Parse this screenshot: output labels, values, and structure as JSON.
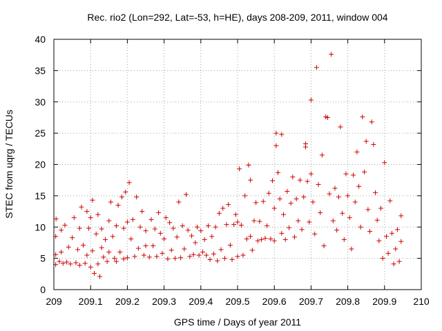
{
  "chart_data": {
    "type": "scatter",
    "title": "Rec. rio2 (Lon=292, Lat=-53, h=HE), days 208-209, 2011, window 004",
    "xlabel": "GPS time / Days of year 2011",
    "ylabel": "STEC from uqrg / TECUs",
    "xlim": [
      209,
      210
    ],
    "ylim": [
      0,
      40
    ],
    "xticks": [
      "209",
      "209.1",
      "209.2",
      "209.3",
      "209.4",
      "209.5",
      "209.6",
      "209.7",
      "209.8",
      "209.9",
      "210"
    ],
    "yticks": [
      "0",
      "5",
      "10",
      "15",
      "20",
      "25",
      "30",
      "35",
      "40"
    ],
    "grid": true,
    "marker": "+",
    "color": "#cc0000",
    "series": [
      {
        "name": "STEC",
        "points": [
          [
            209.005,
            4.0
          ],
          [
            209.005,
            5.6
          ],
          [
            209.005,
            8.5
          ],
          [
            209.006,
            11.3
          ],
          [
            209.015,
            4.5
          ],
          [
            209.02,
            9.5
          ],
          [
            209.02,
            6.0
          ],
          [
            209.025,
            4.2
          ],
          [
            209.03,
            10.3
          ],
          [
            209.035,
            4.4
          ],
          [
            209.04,
            6.8
          ],
          [
            209.045,
            4.1
          ],
          [
            209.05,
            8.3
          ],
          [
            209.055,
            11.5
          ],
          [
            209.06,
            4.3
          ],
          [
            209.065,
            6.4
          ],
          [
            209.07,
            9.8
          ],
          [
            209.07,
            3.9
          ],
          [
            209.075,
            13.2
          ],
          [
            209.08,
            7.1
          ],
          [
            209.085,
            4.2
          ],
          [
            209.09,
            12.5
          ],
          [
            209.09,
            5.5
          ],
          [
            209.095,
            9.8
          ],
          [
            209.1,
            3.6
          ],
          [
            209.1,
            11.5
          ],
          [
            209.105,
            14.3
          ],
          [
            209.105,
            6.2
          ],
          [
            209.11,
            2.6
          ],
          [
            209.115,
            8.9
          ],
          [
            209.12,
            4.1
          ],
          [
            209.12,
            12.0
          ],
          [
            209.125,
            2.1
          ],
          [
            209.13,
            6.7
          ],
          [
            209.13,
            9.7
          ],
          [
            209.135,
            5.2
          ],
          [
            209.14,
            8.0
          ],
          [
            209.145,
            4.5
          ],
          [
            209.15,
            11.0
          ],
          [
            209.15,
            6.0
          ],
          [
            209.155,
            14.0
          ],
          [
            209.16,
            8.5
          ],
          [
            209.165,
            5.0
          ],
          [
            209.17,
            10.2
          ],
          [
            209.17,
            4.5
          ],
          [
            209.175,
            13.5
          ],
          [
            209.18,
            6.0
          ],
          [
            209.185,
            14.8
          ],
          [
            209.19,
            9.8
          ],
          [
            209.19,
            4.9
          ],
          [
            209.195,
            15.6
          ],
          [
            209.2,
            10.8
          ],
          [
            209.2,
            5.1
          ],
          [
            209.205,
            17.1
          ],
          [
            209.21,
            8.1
          ],
          [
            209.215,
            11.2
          ],
          [
            209.22,
            5.3
          ],
          [
            209.225,
            14.8
          ],
          [
            209.23,
            6.6
          ],
          [
            209.235,
            10.0
          ],
          [
            209.24,
            12.5
          ],
          [
            209.245,
            5.5
          ],
          [
            209.25,
            7.0
          ],
          [
            209.25,
            9.4
          ],
          [
            209.26,
            5.2
          ],
          [
            209.265,
            11.2
          ],
          [
            209.27,
            7.0
          ],
          [
            209.275,
            9.7
          ],
          [
            209.28,
            5.3
          ],
          [
            209.285,
            12.3
          ],
          [
            209.29,
            9.0
          ],
          [
            209.295,
            5.8
          ],
          [
            209.3,
            8.1
          ],
          [
            209.305,
            11.5
          ],
          [
            209.31,
            4.9
          ],
          [
            209.315,
            10.7
          ],
          [
            209.32,
            6.3
          ],
          [
            209.325,
            9.8
          ],
          [
            209.33,
            5.0
          ],
          [
            209.335,
            8.4
          ],
          [
            209.34,
            14.0
          ],
          [
            209.345,
            5.1
          ],
          [
            209.35,
            10.2
          ],
          [
            209.355,
            6.5
          ],
          [
            209.36,
            15.2
          ],
          [
            209.365,
            9.5
          ],
          [
            209.37,
            5.3
          ],
          [
            209.375,
            8.6
          ],
          [
            209.38,
            5.6
          ],
          [
            209.385,
            7.5
          ],
          [
            209.39,
            10.0
          ],
          [
            209.395,
            5.5
          ],
          [
            209.4,
            9.4
          ],
          [
            209.405,
            6.0
          ],
          [
            209.41,
            8.0
          ],
          [
            209.415,
            5.5
          ],
          [
            209.42,
            10.2
          ],
          [
            209.425,
            4.8
          ],
          [
            209.43,
            8.5
          ],
          [
            209.435,
            5.7
          ],
          [
            209.44,
            10.0
          ],
          [
            209.445,
            4.6
          ],
          [
            209.45,
            12.2
          ],
          [
            209.455,
            6.4
          ],
          [
            209.46,
            13.0
          ],
          [
            209.465,
            5.0
          ],
          [
            209.47,
            10.4
          ],
          [
            209.475,
            13.6
          ],
          [
            209.48,
            7.1
          ],
          [
            209.485,
            4.8
          ],
          [
            209.49,
            10.4
          ],
          [
            209.495,
            12.0
          ],
          [
            209.5,
            10.8
          ],
          [
            209.5,
            5.3
          ],
          [
            209.505,
            19.3
          ],
          [
            209.51,
            10.3
          ],
          [
            209.515,
            5.5
          ],
          [
            209.52,
            15.0
          ],
          [
            209.525,
            8.1
          ],
          [
            209.53,
            19.9
          ],
          [
            209.535,
            17.5
          ],
          [
            209.535,
            8.5
          ],
          [
            209.54,
            6.3
          ],
          [
            209.545,
            11.0
          ],
          [
            209.55,
            13.9
          ],
          [
            209.555,
            7.8
          ],
          [
            209.56,
            10.9
          ],
          [
            209.565,
            8.0
          ],
          [
            209.57,
            14.1
          ],
          [
            209.575,
            8.2
          ],
          [
            209.58,
            10.2
          ],
          [
            209.585,
            15.4
          ],
          [
            209.59,
            8.1
          ],
          [
            209.595,
            17.4
          ],
          [
            209.6,
            13.0
          ],
          [
            209.6,
            7.8
          ],
          [
            209.605,
            25.0
          ],
          [
            209.605,
            23.0
          ],
          [
            209.61,
            18.7
          ],
          [
            209.615,
            14.5
          ],
          [
            209.62,
            24.8
          ],
          [
            209.62,
            9.0
          ],
          [
            209.625,
            12.0
          ],
          [
            209.63,
            8.0
          ],
          [
            209.635,
            15.7
          ],
          [
            209.64,
            9.9
          ],
          [
            209.645,
            13.8
          ],
          [
            209.65,
            18.0
          ],
          [
            209.655,
            8.4
          ],
          [
            209.66,
            14.5
          ],
          [
            209.665,
            11.0
          ],
          [
            209.67,
            17.5
          ],
          [
            209.675,
            9.6
          ],
          [
            209.68,
            14.8
          ],
          [
            209.685,
            23.3
          ],
          [
            209.685,
            22.8
          ],
          [
            209.69,
            17.3
          ],
          [
            209.695,
            10.8
          ],
          [
            209.7,
            18.5
          ],
          [
            209.705,
            14.0
          ],
          [
            209.71,
            8.9
          ],
          [
            209.715,
            35.5
          ],
          [
            209.7,
            30.3
          ],
          [
            209.72,
            16.8
          ],
          [
            209.725,
            12.3
          ],
          [
            209.73,
            21.5
          ],
          [
            209.735,
            7.0
          ],
          [
            209.74,
            27.6
          ],
          [
            209.745,
            27.5
          ],
          [
            209.75,
            15.3
          ],
          [
            209.755,
            37.6
          ],
          [
            209.76,
            11.0
          ],
          [
            209.765,
            16.2
          ],
          [
            209.77,
            9.5
          ],
          [
            209.775,
            14.8
          ],
          [
            209.78,
            26.0
          ],
          [
            209.785,
            12.2
          ],
          [
            209.79,
            8.0
          ],
          [
            209.795,
            18.5
          ],
          [
            209.8,
            15.0
          ],
          [
            209.805,
            11.5
          ],
          [
            209.81,
            6.5
          ],
          [
            209.815,
            18.3
          ],
          [
            209.82,
            14.0
          ],
          [
            209.825,
            22.0
          ],
          [
            209.83,
            16.5
          ],
          [
            209.835,
            10.0
          ],
          [
            209.84,
            27.6
          ],
          [
            209.845,
            18.8
          ],
          [
            209.85,
            23.7
          ],
          [
            209.855,
            12.8
          ],
          [
            209.86,
            9.3
          ],
          [
            209.865,
            26.8
          ],
          [
            209.87,
            23.2
          ],
          [
            209.875,
            15.5
          ],
          [
            209.88,
            11.1
          ],
          [
            209.885,
            7.8
          ],
          [
            209.89,
            13.0
          ],
          [
            209.895,
            5.0
          ],
          [
            209.9,
            20.3
          ],
          [
            209.905,
            8.5
          ],
          [
            209.91,
            5.8
          ],
          [
            209.915,
            14.2
          ],
          [
            209.92,
            9.0
          ],
          [
            209.925,
            4.1
          ],
          [
            209.93,
            6.5
          ],
          [
            209.935,
            9.6
          ],
          [
            209.94,
            4.5
          ],
          [
            209.945,
            11.8
          ],
          [
            209.945,
            7.7
          ]
        ]
      }
    ]
  }
}
